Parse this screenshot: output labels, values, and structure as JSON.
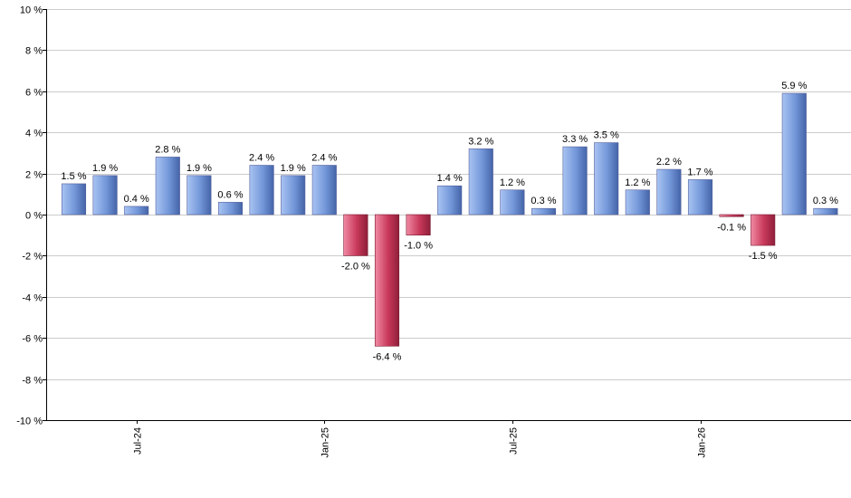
{
  "chart_data": {
    "type": "bar",
    "title": "",
    "xlabel": "",
    "ylabel": "",
    "ylim": [
      -10,
      10
    ],
    "y_ticks": [
      {
        "value": 10,
        "label": "10 %"
      },
      {
        "value": 8,
        "label": "8 %"
      },
      {
        "value": 6,
        "label": "6 %"
      },
      {
        "value": 4,
        "label": "4 %"
      },
      {
        "value": 2,
        "label": "2 %"
      },
      {
        "value": 0,
        "label": "0 %"
      },
      {
        "value": -2,
        "label": "-2 %"
      },
      {
        "value": -4,
        "label": "-4 %"
      },
      {
        "value": -6,
        "label": "-6 %"
      },
      {
        "value": -8,
        "label": "-8 %"
      },
      {
        "value": -10,
        "label": "-10 %"
      }
    ],
    "x_ticks": [
      {
        "index": 2,
        "label": "Jul-24"
      },
      {
        "index": 8,
        "label": "Jan-25"
      },
      {
        "index": 14,
        "label": "Jul-25"
      },
      {
        "index": 20,
        "label": "Jan-26"
      }
    ],
    "grid": true,
    "legend": "none",
    "colors": {
      "positive": "#6f93d6",
      "negative": "#c8385a"
    },
    "values": [
      1.5,
      1.9,
      0.4,
      2.8,
      1.9,
      0.6,
      2.4,
      1.9,
      2.4,
      -2.0,
      -6.4,
      -1.0,
      1.4,
      3.2,
      1.2,
      0.3,
      3.3,
      3.5,
      1.2,
      2.2,
      1.7,
      -0.1,
      -1.5,
      5.9,
      0.3
    ],
    "labels": [
      "1.5 %",
      "1.9 %",
      "0.4 %",
      "2.8 %",
      "1.9 %",
      "0.6 %",
      "2.4 %",
      "1.9 %",
      "2.4 %",
      "-2.0 %",
      "-6.4 %",
      "-1.0 %",
      "1.4 %",
      "3.2 %",
      "1.2 %",
      "0.3 %",
      "3.3 %",
      "3.5 %",
      "1.2 %",
      "2.2 %",
      "1.7 %",
      "-0.1 %",
      "-1.5 %",
      "5.9 %",
      "0.3 %"
    ]
  }
}
